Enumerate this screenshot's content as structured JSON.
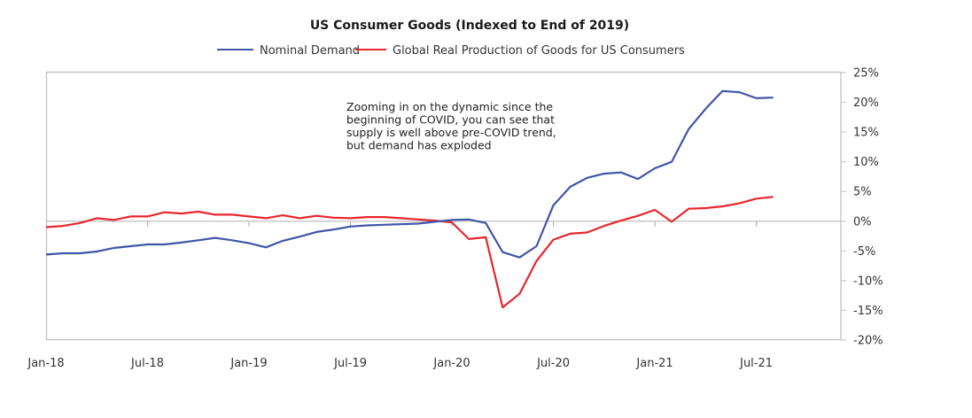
{
  "chart_data": {
    "type": "line",
    "title": "US Consumer Goods (Indexed to End of 2019)",
    "xlabel": "",
    "ylabel": "",
    "y_axis_position": "right",
    "ylim": [
      -20,
      25
    ],
    "yticks": [
      25,
      20,
      15,
      10,
      5,
      0,
      -5,
      -10,
      -15,
      -20
    ],
    "ytick_labels": [
      "25%",
      "20%",
      "15%",
      "10%",
      "5%",
      "0%",
      "-5%",
      "-10%",
      "-15%",
      "-20%"
    ],
    "x_range_months": [
      "Jan-18",
      "Dec-21"
    ],
    "xtick_labels": [
      "Jan-18",
      "Jul-18",
      "Jan-19",
      "Jul-19",
      "Jan-20",
      "Jul-20",
      "Jan-21",
      "Jul-21"
    ],
    "xtick_month_index": [
      0,
      6,
      12,
      18,
      24,
      30,
      36,
      42
    ],
    "grid": false,
    "legend_position": "top-center",
    "x": [
      "Jan-18",
      "Feb-18",
      "Mar-18",
      "Apr-18",
      "May-18",
      "Jun-18",
      "Jul-18",
      "Aug-18",
      "Sep-18",
      "Oct-18",
      "Nov-18",
      "Dec-18",
      "Jan-19",
      "Feb-19",
      "Mar-19",
      "Apr-19",
      "May-19",
      "Jun-19",
      "Jul-19",
      "Aug-19",
      "Sep-19",
      "Oct-19",
      "Nov-19",
      "Dec-19",
      "Jan-20",
      "Feb-20",
      "Mar-20",
      "Apr-20",
      "May-20",
      "Jun-20",
      "Jul-20",
      "Aug-20",
      "Sep-20",
      "Oct-20",
      "Nov-20",
      "Dec-20",
      "Jan-21",
      "Feb-21",
      "Mar-21",
      "Apr-21",
      "May-21",
      "Jun-21",
      "Jul-21",
      "Aug-21"
    ],
    "series": [
      {
        "name": "Nominal Demand",
        "color": "#3f56a8",
        "values": [
          -5.6,
          -5.4,
          -5.4,
          -5.1,
          -4.5,
          -4.2,
          -3.9,
          -3.9,
          -3.6,
          -3.2,
          -2.8,
          -3.2,
          -3.7,
          -4.4,
          -3.3,
          -2.6,
          -1.8,
          -1.4,
          -0.9,
          -0.7,
          -0.6,
          -0.5,
          -0.4,
          -0.1,
          0.2,
          0.3,
          -0.3,
          -5.2,
          -6.1,
          -4.2,
          2.7,
          5.8,
          7.3,
          8.0,
          8.2,
          7.1,
          8.9,
          10.0,
          15.5,
          18.9,
          21.9,
          21.7,
          20.7,
          20.8
        ]
      },
      {
        "name": "Global Real Production of Goods for US Consumers",
        "color": "#e8262d",
        "values": [
          -1.0,
          -0.8,
          -0.3,
          0.5,
          0.2,
          0.8,
          0.8,
          1.5,
          1.3,
          1.6,
          1.1,
          1.1,
          0.8,
          0.5,
          1.0,
          0.5,
          0.9,
          0.6,
          0.5,
          0.7,
          0.7,
          0.5,
          0.3,
          0.1,
          -0.2,
          -3.0,
          -2.7,
          -14.5,
          -12.2,
          -6.7,
          -3.1,
          -2.1,
          -1.9,
          -0.8,
          0.1,
          0.9,
          1.9,
          -0.1,
          2.1,
          2.2,
          2.5,
          3.0,
          3.8,
          4.1
        ]
      }
    ],
    "annotations": [
      {
        "lines": [
          "Zooming in on the dynamic since the",
          "beginning of COVID, you can see that",
          "supply is well above pre-COVID trend,",
          "but demand has exploded"
        ]
      }
    ]
  }
}
